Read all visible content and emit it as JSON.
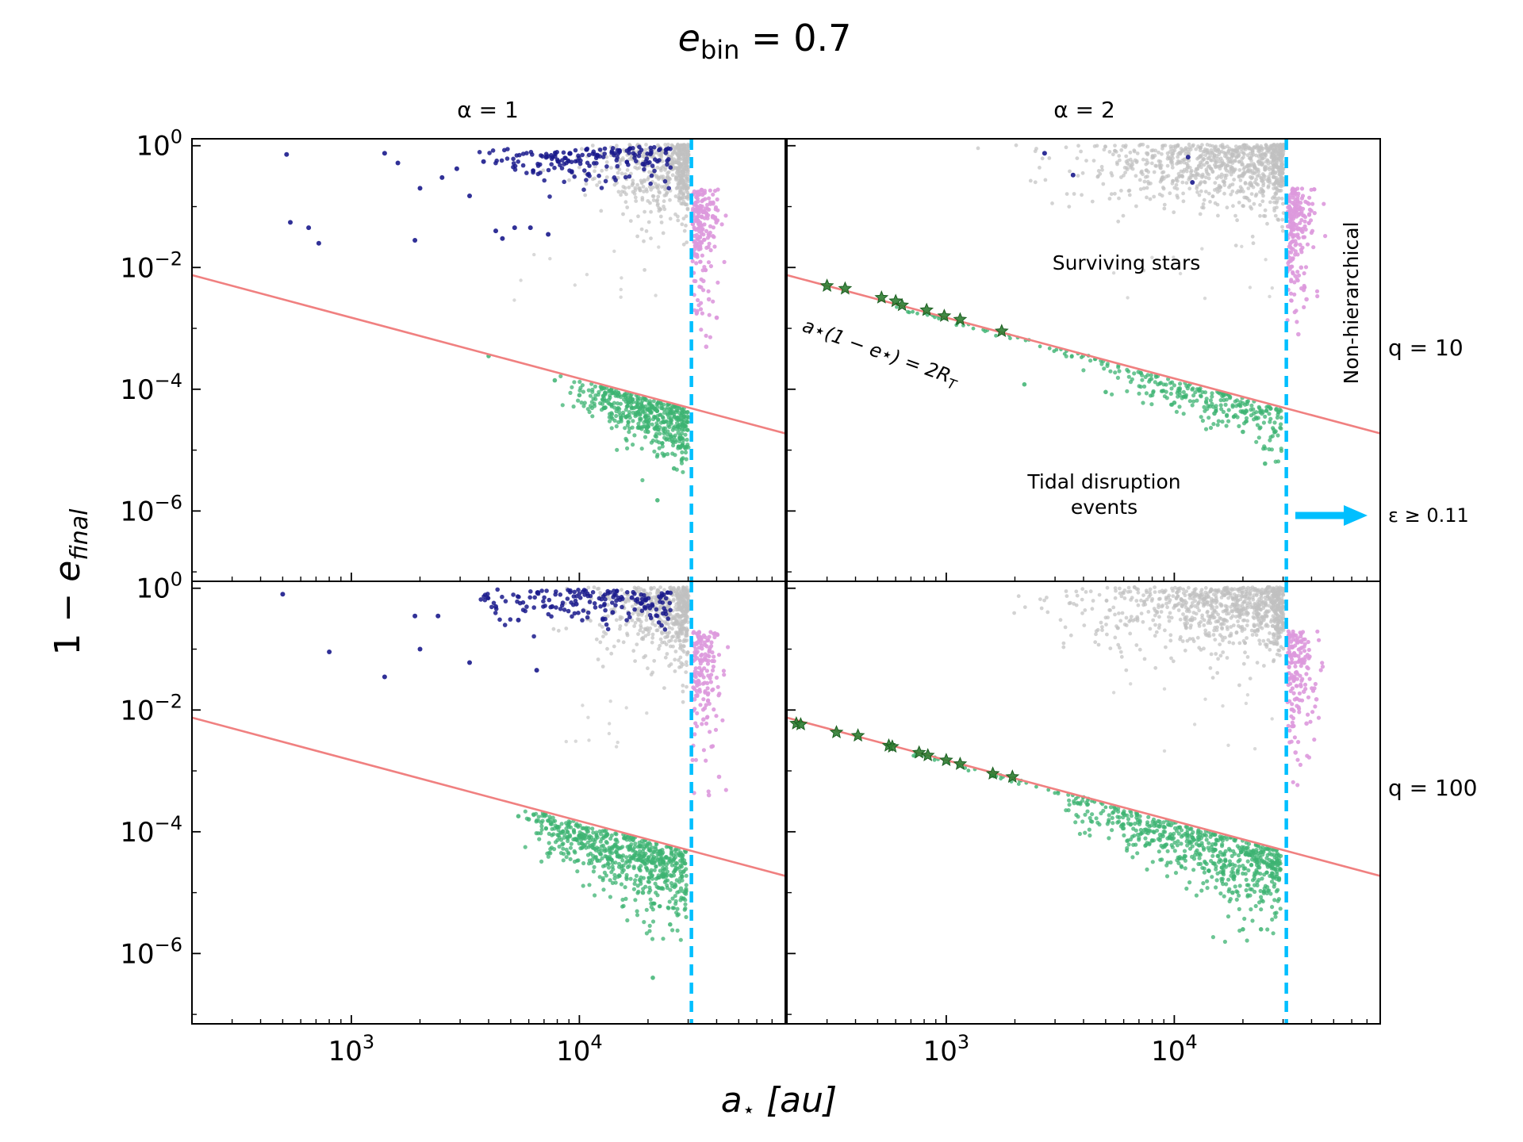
{
  "figure": {
    "suptitle_var": "e",
    "suptitle_sub": "bin",
    "suptitle_rhs": " = 0.7",
    "xlabel_var": "a",
    "xlabel_star": "⋆",
    "xlabel_unit": " [au]",
    "ylabel_prefix": "1 − ",
    "ylabel_var": "e",
    "ylabel_sub": "final",
    "col_titles": [
      "α = 1",
      "α = 2"
    ],
    "row_labels": [
      "q = 10",
      "q = 100"
    ],
    "annotations": {
      "surviving": "Surviving stars",
      "tde_line1": "Tidal disruption",
      "tde_line2": "events",
      "nonhier": "Non-hierarchical",
      "epsilon": "ε ≥ 0.11",
      "line_lhs": "a⋆(1 − e⋆) = 2R",
      "line_sub": "T"
    }
  },
  "chart_data": {
    "type": "scatter",
    "layout": "2x2 grid, shared axes",
    "x_scale": "log",
    "y_scale": "log",
    "xlim": [
      200,
      80000
    ],
    "ylim": [
      7e-08,
      1.3
    ],
    "x_ticks": [
      {
        "value": 1000,
        "label_base": "10",
        "label_exp": "3"
      },
      {
        "value": 10000,
        "label_base": "10",
        "label_exp": "4"
      }
    ],
    "y_ticks": [
      {
        "value": 1,
        "label_base": "10",
        "label_exp": "0"
      },
      {
        "value": 0.01,
        "label_base": "10",
        "label_exp": "−2"
      },
      {
        "value": 0.0001,
        "label_base": "10",
        "label_exp": "−4"
      },
      {
        "value": 1e-06,
        "label_base": "10",
        "label_exp": "−6"
      }
    ],
    "hierarchical_limit_x": 31000,
    "tidal_line": {
      "x": [
        200,
        80000
      ],
      "y": [
        0.0075,
        1.88e-05
      ]
    },
    "colors": {
      "surviving": "#1a1a8c",
      "background": "#c0c0c0",
      "tde": "#3cb371",
      "nonhier": "#dd99dd",
      "star_marker": "#2e7d32",
      "line": "#f08080",
      "limit": "#00bfff"
    },
    "panels": [
      {
        "row": 0,
        "col": 0,
        "alpha": 1,
        "q": 10,
        "surviving_sample": [
          [
            520,
            0.72
          ],
          [
            540,
            0.055
          ],
          [
            650,
            0.045
          ],
          [
            720,
            0.025
          ],
          [
            1400,
            0.75
          ],
          [
            1600,
            0.52
          ],
          [
            1900,
            0.028
          ],
          [
            2000,
            0.2
          ],
          [
            2500,
            0.3
          ],
          [
            2900,
            0.42
          ],
          [
            3300,
            0.15
          ],
          [
            3800,
            0.55
          ],
          [
            4300,
            0.04
          ],
          [
            4600,
            0.03
          ],
          [
            5200,
            0.045
          ],
          [
            6100,
            0.045
          ],
          [
            7300,
            0.035
          ],
          [
            8100,
            0.55
          ],
          [
            9100,
            0.75
          ],
          [
            12000,
            0.7
          ],
          [
            15000,
            0.8
          ],
          [
            19000,
            0.5
          ]
        ],
        "tde_sample": [
          [
            4000,
            0.00035
          ],
          [
            7800,
            0.00014
          ],
          [
            10000,
            8e-05
          ],
          [
            13000,
            5e-05
          ],
          [
            16000,
            3.5e-05
          ],
          [
            20000,
            2e-05
          ],
          [
            22000,
            1.5e-06
          ],
          [
            26000,
            5e-06
          ]
        ],
        "nonhier_sample": [
          [
            32000,
            0.02
          ],
          [
            35000,
            0.006
          ],
          [
            37000,
            0.003
          ],
          [
            40000,
            0.0015
          ],
          [
            36000,
            0.0005
          ]
        ]
      },
      {
        "row": 0,
        "col": 1,
        "alpha": 2,
        "q": 10,
        "surviving_sample": [
          [
            2700,
            0.75
          ],
          [
            3600,
            0.33
          ],
          [
            11500,
            0.65
          ],
          [
            12000,
            0.25
          ]
        ],
        "tde_sample": [
          [
            2200,
            0.00012
          ],
          [
            5000,
            9e-05
          ],
          [
            10000,
            6e-05
          ],
          [
            15000,
            4e-05
          ],
          [
            20000,
            2e-05
          ],
          [
            25000,
            6e-06
          ]
        ],
        "nonhier_sample": [
          [
            33000,
            0.05
          ],
          [
            36000,
            0.01
          ],
          [
            38000,
            0.003
          ],
          [
            35000,
            0.0008
          ]
        ],
        "star_events": [
          [
            300,
            0.005
          ],
          [
            360,
            0.0045
          ],
          [
            520,
            0.0032
          ],
          [
            600,
            0.0028
          ],
          [
            640,
            0.0024
          ],
          [
            820,
            0.002
          ],
          [
            980,
            0.0016
          ],
          [
            1150,
            0.0014
          ],
          [
            1750,
            0.0009
          ]
        ]
      },
      {
        "row": 1,
        "col": 0,
        "alpha": 1,
        "q": 100,
        "surviving_sample": [
          [
            500,
            0.8
          ],
          [
            800,
            0.09
          ],
          [
            1400,
            0.035
          ],
          [
            1900,
            0.35
          ],
          [
            2000,
            0.1
          ],
          [
            2400,
            0.35
          ],
          [
            3300,
            0.06
          ],
          [
            4300,
            0.5
          ],
          [
            5400,
            0.3
          ],
          [
            6500,
            0.045
          ],
          [
            7600,
            0.5
          ],
          [
            9700,
            0.55
          ],
          [
            14000,
            0.4
          ],
          [
            17000,
            0.7
          ]
        ],
        "tde_sample": [
          [
            5400,
            0.00018
          ],
          [
            6000,
            0.00016
          ],
          [
            8000,
            0.00012
          ],
          [
            11000,
            8e-05
          ],
          [
            15000,
            4e-05
          ],
          [
            19000,
            1e-05
          ],
          [
            21000,
            4e-07
          ],
          [
            25000,
            3e-06
          ]
        ],
        "nonhier_sample": [
          [
            32000,
            0.015
          ],
          [
            35000,
            0.007
          ],
          [
            38000,
            0.0025
          ],
          [
            41000,
            0.0008
          ],
          [
            37000,
            0.0004
          ]
        ]
      },
      {
        "row": 1,
        "col": 1,
        "alpha": 2,
        "q": 100,
        "surviving_sample": [],
        "tde_sample": [
          [
            6000,
            0.0002
          ],
          [
            9000,
            0.00012
          ],
          [
            12000,
            8e-05
          ],
          [
            15000,
            3e-05
          ],
          [
            18000,
            1e-05
          ],
          [
            20000,
            2.5e-06
          ],
          [
            24000,
            2.5e-06
          ]
        ],
        "nonhier_sample": [
          [
            33000,
            0.08
          ],
          [
            37000,
            0.02
          ],
          [
            42000,
            0.015
          ],
          [
            38000,
            0.006
          ],
          [
            34000,
            0.002
          ]
        ],
        "star_events": [
          [
            220,
            0.006
          ],
          [
            230,
            0.0058
          ],
          [
            330,
            0.0043
          ],
          [
            410,
            0.0038
          ],
          [
            560,
            0.0026
          ],
          [
            580,
            0.0025
          ],
          [
            760,
            0.002
          ],
          [
            830,
            0.0018
          ],
          [
            1000,
            0.0015
          ],
          [
            1150,
            0.0013
          ],
          [
            1600,
            0.0009
          ],
          [
            1950,
            0.0008
          ]
        ]
      }
    ]
  }
}
